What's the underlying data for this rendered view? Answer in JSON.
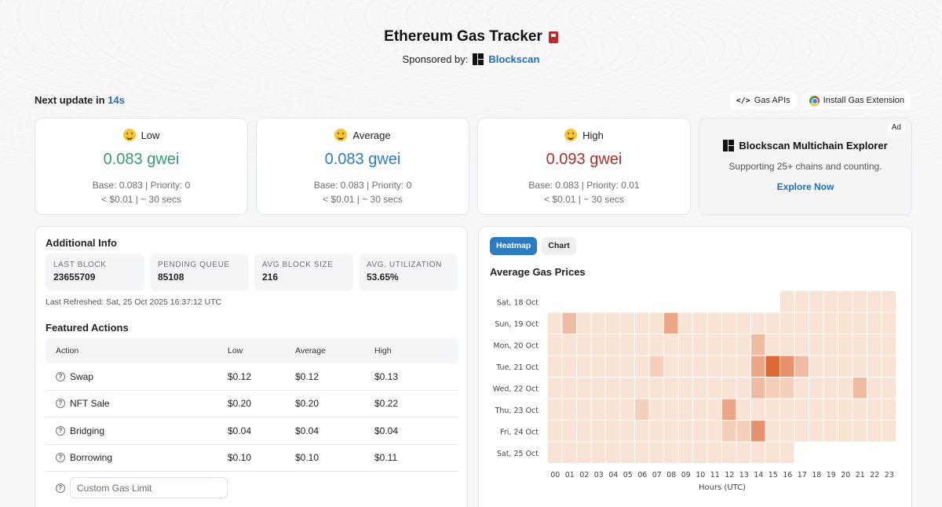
{
  "header": {
    "title": "Ethereum Gas Tracker",
    "sponsor_label": "Sponsored by:",
    "sponsor_name": "Blockscan"
  },
  "update": {
    "label": "Next update in",
    "value": "14s"
  },
  "links": {
    "gas_apis": "Gas APIs",
    "extension": "Install Gas Extension"
  },
  "gas": {
    "low": {
      "label": "Low",
      "price": "0.083 gwei",
      "base": "Base: 0.083 | Priority: 0",
      "cost": "< $0.01 | ~ 30 secs",
      "color": "#3a9a72"
    },
    "average": {
      "label": "Average",
      "price": "0.083 gwei",
      "base": "Base: 0.083 | Priority: 0",
      "cost": "< $0.01 | ~ 30 secs",
      "color": "#2e7cc0"
    },
    "high": {
      "label": "High",
      "price": "0.093 gwei",
      "base": "Base: 0.083 | Priority: 0.01",
      "cost": "< $0.01 | ~ 30 secs",
      "color": "#a8322e"
    }
  },
  "ad": {
    "badge": "Ad",
    "title": "Blockscan Multichain Explorer",
    "description": "Supporting 25+ chains and counting.",
    "cta": "Explore Now"
  },
  "info": {
    "title": "Additional Info",
    "stats": [
      {
        "label": "LAST BLOCK",
        "value": "23655709"
      },
      {
        "label": "PENDING QUEUE",
        "value": "85108"
      },
      {
        "label": "AVG BLOCK SIZE",
        "value": "216"
      },
      {
        "label": "AVG. UTILIZATION",
        "value": "53.65%"
      }
    ],
    "refreshed": "Last Refreshed: Sat, 25 Oct 2025 16:37:12 UTC"
  },
  "actions": {
    "title": "Featured Actions",
    "headers": [
      "Action",
      "Low",
      "Average",
      "High"
    ],
    "rows": [
      {
        "name": "Swap",
        "low": "$0.12",
        "avg": "$0.12",
        "high": "$0.13"
      },
      {
        "name": "NFT Sale",
        "low": "$0.20",
        "avg": "$0.20",
        "high": "$0.22"
      },
      {
        "name": "Bridging",
        "low": "$0.04",
        "avg": "$0.04",
        "high": "$0.04"
      },
      {
        "name": "Borrowing",
        "low": "$0.10",
        "avg": "$0.10",
        "high": "$0.11"
      }
    ],
    "custom_placeholder": "Custom Gas Limit"
  },
  "heatmap": {
    "tabs": {
      "heatmap": "Heatmap",
      "chart": "Chart"
    },
    "title": "Average Gas Prices",
    "colors": {
      "low": "#f9e3d4",
      "high": "#de6a38"
    }
  },
  "chart_data": {
    "type": "heatmap",
    "title": "Average Gas Prices",
    "xlabel": "Hours (UTC)",
    "ylabel": "",
    "x": [
      "00",
      "01",
      "02",
      "03",
      "04",
      "05",
      "06",
      "07",
      "08",
      "09",
      "10",
      "11",
      "12",
      "13",
      "14",
      "15",
      "16",
      "17",
      "18",
      "19",
      "20",
      "21",
      "22",
      "23"
    ],
    "y": [
      "Sat, 18 Oct",
      "Sun, 19 Oct",
      "Mon, 20 Oct",
      "Tue, 21 Oct",
      "Wed, 22 Oct",
      "Thu, 23 Oct",
      "Fri, 24 Oct",
      "Sat, 25 Oct"
    ],
    "values": [
      [
        null,
        null,
        null,
        null,
        null,
        null,
        null,
        null,
        null,
        null,
        null,
        null,
        null,
        null,
        null,
        null,
        1,
        1,
        1,
        1,
        1,
        1,
        1,
        1
      ],
      [
        1,
        3,
        1,
        1,
        1,
        1,
        1,
        1,
        4,
        1,
        1,
        1,
        1,
        1,
        1,
        1,
        1,
        1,
        1,
        1,
        1,
        1,
        1,
        1
      ],
      [
        1,
        1,
        1,
        1,
        1,
        1,
        1,
        1,
        1,
        1,
        1,
        1,
        1,
        1,
        3,
        1,
        1,
        1,
        1,
        1,
        1,
        1,
        1,
        1
      ],
      [
        1,
        1,
        1,
        1,
        1,
        1,
        1,
        2,
        1,
        1,
        1,
        1,
        1,
        1,
        4,
        7,
        5,
        3,
        1,
        1,
        1,
        1,
        1,
        1
      ],
      [
        1,
        1,
        1,
        1,
        1,
        1,
        1,
        1,
        1,
        1,
        1,
        1,
        1,
        1,
        3,
        2,
        2,
        1,
        1,
        1,
        1,
        3,
        1,
        1
      ],
      [
        1,
        1,
        1,
        1,
        1,
        1,
        2,
        1,
        1,
        1,
        1,
        1,
        4,
        1,
        1,
        1,
        1,
        1,
        1,
        1,
        1,
        1,
        1,
        1
      ],
      [
        1,
        1,
        1,
        1,
        1,
        1,
        1,
        1,
        1,
        1,
        1,
        1,
        2,
        2,
        5,
        1,
        1,
        1,
        1,
        1,
        1,
        1,
        1,
        1
      ],
      [
        1,
        1,
        1,
        1,
        1,
        1,
        1,
        1,
        1,
        1,
        1,
        1,
        1,
        1,
        1,
        1,
        1,
        null,
        null,
        null,
        null,
        null,
        null,
        null
      ]
    ],
    "value_scale": [
      1,
      7
    ],
    "legend": "none"
  }
}
